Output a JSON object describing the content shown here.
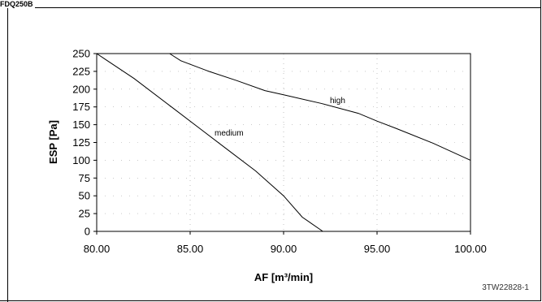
{
  "header": {
    "model": "FDQ250B"
  },
  "footer": {
    "reference": "3TW22828-1"
  },
  "chart_data": {
    "type": "line",
    "xlabel": "AF [m³/min]",
    "ylabel": "ESP [Pa]",
    "xlim": [
      80,
      100
    ],
    "ylim": [
      0,
      250
    ],
    "x_ticks": [
      "80.00",
      "85.00",
      "90.00",
      "95.00",
      "100.00"
    ],
    "y_ticks": [
      "0",
      "25",
      "50",
      "75",
      "100",
      "125",
      "150",
      "175",
      "200",
      "225",
      "250"
    ],
    "grid": true,
    "series": [
      {
        "name": "high",
        "color": "#000000",
        "points": [
          [
            83.9,
            250
          ],
          [
            84.5,
            240
          ],
          [
            86.0,
            225
          ],
          [
            87.5,
            212
          ],
          [
            89.0,
            198
          ],
          [
            90.0,
            192
          ],
          [
            92.0,
            180
          ],
          [
            94.0,
            166
          ],
          [
            95.0,
            155
          ],
          [
            96.0,
            145
          ],
          [
            98.0,
            124
          ],
          [
            100.0,
            100
          ]
        ]
      },
      {
        "name": "medium",
        "color": "#000000",
        "points": [
          [
            80.0,
            250
          ],
          [
            82.0,
            215
          ],
          [
            84.0,
            175
          ],
          [
            85.5,
            145
          ],
          [
            87.0,
            115
          ],
          [
            88.5,
            85
          ],
          [
            90.0,
            50
          ],
          [
            91.0,
            20
          ],
          [
            92.1,
            0
          ]
        ]
      }
    ]
  }
}
